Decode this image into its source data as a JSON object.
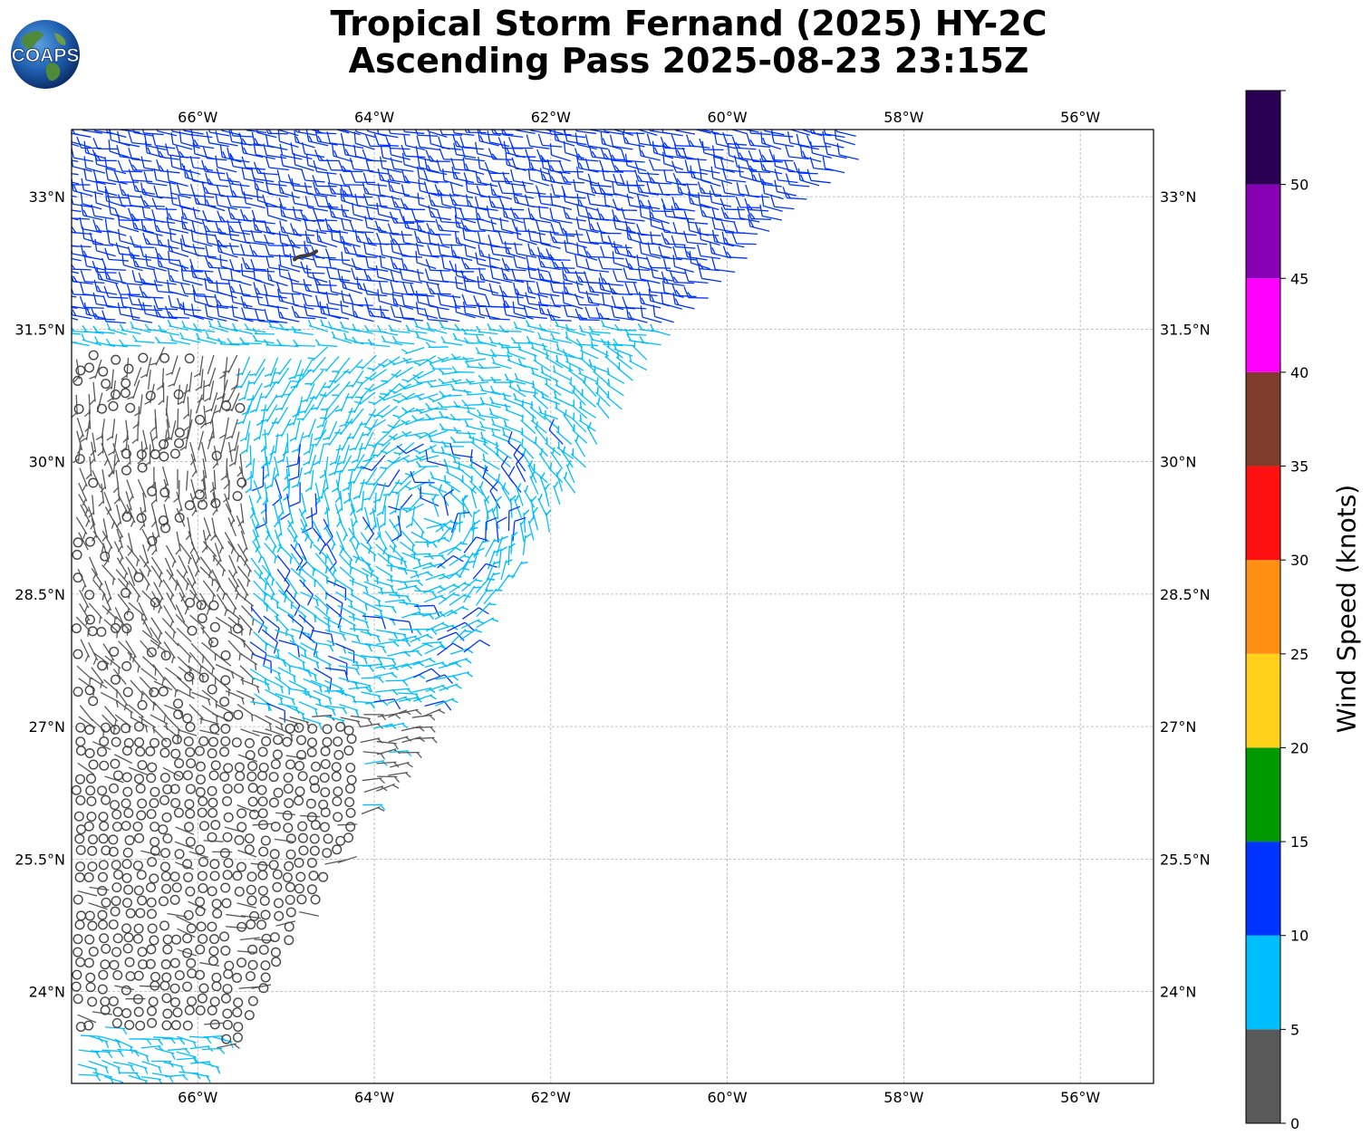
{
  "title": {
    "line1": "Tropical Storm Fernand (2025) HY-2C",
    "line2": "Ascending Pass 2025-08-23 23:15Z"
  },
  "logo": {
    "text": "COAPS",
    "icon": "globe-icon"
  },
  "map": {
    "lon_min": -67.43,
    "lon_max": -55.17,
    "lat_min": 22.96,
    "lat_max": 33.76,
    "lon_ticks": [
      {
        "value": -66,
        "label": "66°W"
      },
      {
        "value": -64,
        "label": "64°W"
      },
      {
        "value": -62,
        "label": "62°W"
      },
      {
        "value": -60,
        "label": "60°W"
      },
      {
        "value": -58,
        "label": "58°W"
      },
      {
        "value": -56,
        "label": "56°W"
      }
    ],
    "lat_ticks": [
      {
        "value": 33,
        "label": "33°N"
      },
      {
        "value": 31.5,
        "label": "31.5°N"
      },
      {
        "value": 30,
        "label": "30°N"
      },
      {
        "value": 28.5,
        "label": "28.5°N"
      },
      {
        "value": 27,
        "label": "27°N"
      },
      {
        "value": 25.5,
        "label": "25.5°N"
      },
      {
        "value": 24,
        "label": "24°N"
      }
    ],
    "grid": "dashed",
    "land": {
      "name": "Bermuda",
      "lon": -64.78,
      "lat": 32.32
    },
    "swath_east_edge": [
      {
        "lon": -58.4,
        "lat": 33.5
      },
      {
        "lon": -59.5,
        "lat": 32.5
      },
      {
        "lon": -60.5,
        "lat": 31.6
      },
      {
        "lon": -61.3,
        "lat": 30.4
      },
      {
        "lon": -62.0,
        "lat": 29.2
      },
      {
        "lon": -62.7,
        "lat": 28.3
      },
      {
        "lon": -63.3,
        "lat": 27.2
      },
      {
        "lon": -64.0,
        "lat": 26.2
      },
      {
        "lon": -64.4,
        "lat": 25.4
      },
      {
        "lon": -64.9,
        "lat": 24.7
      },
      {
        "lon": -65.2,
        "lat": 24.0
      },
      {
        "lon": -65.5,
        "lat": 23.5
      },
      {
        "lon": -66.2,
        "lat": 22.96
      }
    ]
  },
  "colorbar": {
    "label": "Wind Speed (knots)",
    "bins": [
      {
        "from": 0,
        "to": 5,
        "color": "#595959"
      },
      {
        "from": 5,
        "to": 10,
        "color": "#00bfff"
      },
      {
        "from": 10,
        "to": 15,
        "color": "#0033ff"
      },
      {
        "from": 15,
        "to": 20,
        "color": "#009900"
      },
      {
        "from": 20,
        "to": 25,
        "color": "#ffd11a"
      },
      {
        "from": 25,
        "to": 30,
        "color": "#ff9013"
      },
      {
        "from": 30,
        "to": 35,
        "color": "#ff1010"
      },
      {
        "from": 35,
        "to": 40,
        "color": "#803c2a"
      },
      {
        "from": 40,
        "to": 45,
        "color": "#ff00ff"
      },
      {
        "from": 45,
        "to": 50,
        "color": "#8800b3"
      },
      {
        "from": 50,
        "to": 55,
        "color": "#2a0055"
      }
    ],
    "tick_labels": [
      "0",
      "5",
      "10",
      "15",
      "20",
      "25",
      "30",
      "35",
      "40",
      "45",
      "50"
    ]
  },
  "wind_field": {
    "units": "knots",
    "center": {
      "lon": -63.4,
      "lat": 29.4
    },
    "regions": [
      {
        "lon_min": -67.4,
        "lon_max": -58.5,
        "lat_min": 31.5,
        "lat_max": 33.8,
        "speed_kt": 12
      },
      {
        "lon_min": -67.4,
        "lon_max": -60.5,
        "lat_min": 30.2,
        "lat_max": 31.5,
        "speed_kt": 8
      },
      {
        "lon_min": -65.5,
        "lon_max": -61.2,
        "lat_min": 27.2,
        "lat_max": 30.2,
        "speed_kt": 9
      },
      {
        "lon_min": -67.4,
        "lon_max": -65.5,
        "lat_min": 27.0,
        "lat_max": 31.3,
        "speed_kt": 3
      },
      {
        "lon_min": -67.4,
        "lon_max": -64.2,
        "lat_min": 23.4,
        "lat_max": 27.0,
        "speed_kt": 1
      },
      {
        "lon_min": -67.4,
        "lon_max": -65.8,
        "lat_min": 22.96,
        "lat_max": 23.6,
        "speed_kt": 7
      }
    ]
  }
}
